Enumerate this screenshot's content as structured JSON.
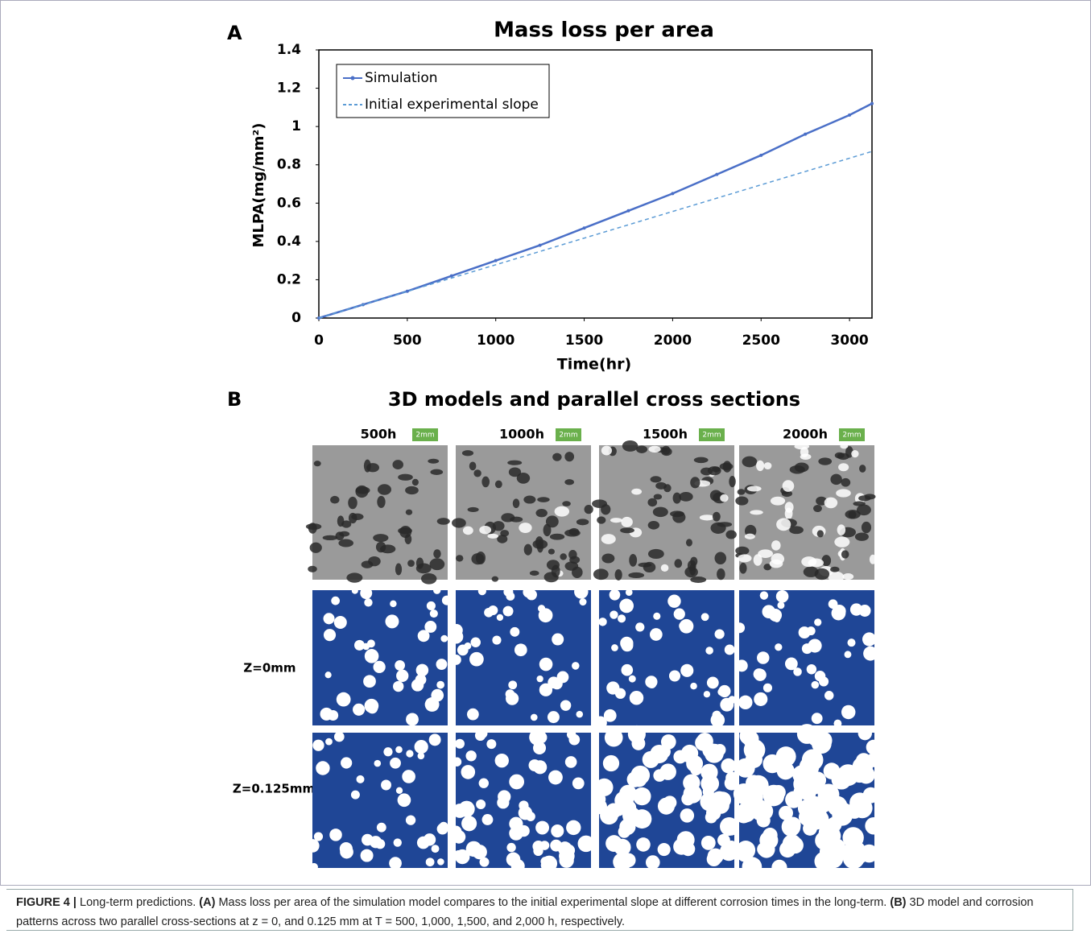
{
  "panel_labels": [
    "A",
    "B"
  ],
  "chart_data": {
    "type": "line",
    "title": "Mass loss per area",
    "x_label": "Time(hr)",
    "y_label": "MLPA(mg/mm²)",
    "xlim": [
      0,
      3127
    ],
    "xticks": [
      0,
      500,
      1000,
      1500,
      2000,
      2500,
      3000
    ],
    "ylim": [
      0,
      1.4
    ],
    "yticks": [
      0,
      0.2,
      0.4,
      0.6,
      0.8,
      1,
      1.2,
      1.4
    ],
    "legend": "upper left",
    "series": [
      {
        "name": "Simulation",
        "color": "#4a6fc7",
        "style": "solid",
        "marker": true,
        "x": [
          0,
          250,
          500,
          750,
          1000,
          1250,
          1500,
          1750,
          2000,
          2250,
          2500,
          2750,
          3000,
          3127
        ],
        "values": [
          0,
          0.07,
          0.14,
          0.22,
          0.3,
          0.38,
          0.47,
          0.56,
          0.65,
          0.75,
          0.85,
          0.96,
          1.06,
          1.12
        ]
      },
      {
        "name": "Initial experimental slope",
        "color": "#5b9bd5",
        "style": "dashed",
        "marker": false,
        "x": [
          0,
          3127
        ],
        "values": [
          0,
          0.87
        ]
      }
    ]
  },
  "panel_b": {
    "title": "3D models and parallel cross sections",
    "columns": [
      "500h",
      "1000h",
      "1500h",
      "2000h"
    ],
    "scale_bar": "2mm",
    "rows": [
      "Z=0mm",
      "Z=0.125mm"
    ]
  },
  "caption": {
    "label": "FIGURE 4 |",
    "intro": "Long-term predictions.",
    "a_label": "(A)",
    "a_text": "Mass loss per area of the simulation model compares to the initial experimental slope at different corrosion times in the long-term.",
    "b_label": "(B)",
    "b_text": "3D model and corrosion patterns across two parallel cross-sections at z = 0, and 0.125 mm at T = 500, 1,000, 1,500, and 2,000 h, respectively."
  }
}
